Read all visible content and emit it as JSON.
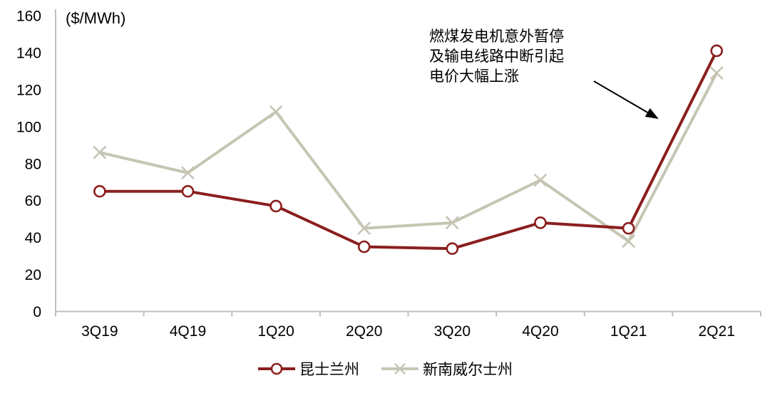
{
  "chart_data": {
    "type": "line",
    "title": "",
    "xlabel": "",
    "ylabel": "($/MWh)",
    "categories": [
      "3Q19",
      "4Q19",
      "1Q20",
      "2Q20",
      "3Q20",
      "4Q20",
      "1Q21",
      "2Q21"
    ],
    "series": [
      {
        "name": "昆士兰州",
        "marker": "circle",
        "color": "#8B1E1E",
        "values": [
          65,
          65,
          57,
          35,
          34,
          48,
          45,
          141
        ]
      },
      {
        "name": "新南威尔士州",
        "marker": "x",
        "color": "#C6C5B3",
        "values": [
          86,
          75,
          108,
          45,
          48,
          71,
          38,
          129
        ]
      }
    ],
    "ylim": [
      0,
      160
    ],
    "ytick_step": 20,
    "yticks": [
      0,
      20,
      40,
      60,
      80,
      100,
      120,
      140,
      160
    ],
    "grid": false,
    "legend_position": "bottom",
    "annotation": {
      "text_lines": [
        "燃煤发电机意外暂停",
        "及输电线路中断引起",
        "电价大幅上涨"
      ],
      "arrow_from": [
        833,
        114
      ],
      "arrow_to": [
        922,
        166
      ]
    }
  },
  "colors": {
    "axis": "#BFBFBF",
    "text": "#000000",
    "background": "#FFFFFF",
    "arrow": "#000000",
    "marker_fill": "#FFFFFF"
  }
}
